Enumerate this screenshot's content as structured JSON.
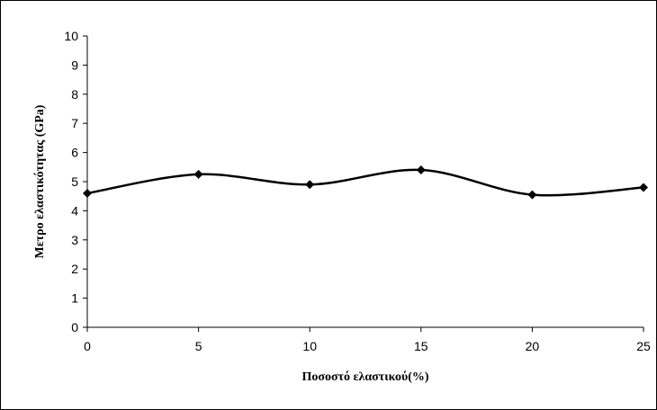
{
  "chart_data": {
    "type": "line",
    "title": "",
    "xlabel": "Ποσοστό ελαστικού(%)",
    "ylabel": "Μετρο ελαστικότητας (GPa)",
    "x": [
      0,
      5,
      10,
      15,
      20,
      25
    ],
    "series": [
      {
        "values": [
          4.6,
          5.25,
          4.9,
          5.4,
          4.55,
          4.8
        ],
        "color": "#000000",
        "marker": "diamond",
        "smooth": true
      }
    ],
    "xlim": [
      0,
      25
    ],
    "ylim": [
      0,
      10
    ],
    "xticks": [
      "0",
      "5",
      "10",
      "15",
      "20",
      "25"
    ],
    "yticks": [
      "0",
      "1",
      "2",
      "3",
      "4",
      "5",
      "6",
      "7",
      "8",
      "9",
      "10"
    ],
    "grid": false,
    "legend": "none"
  }
}
